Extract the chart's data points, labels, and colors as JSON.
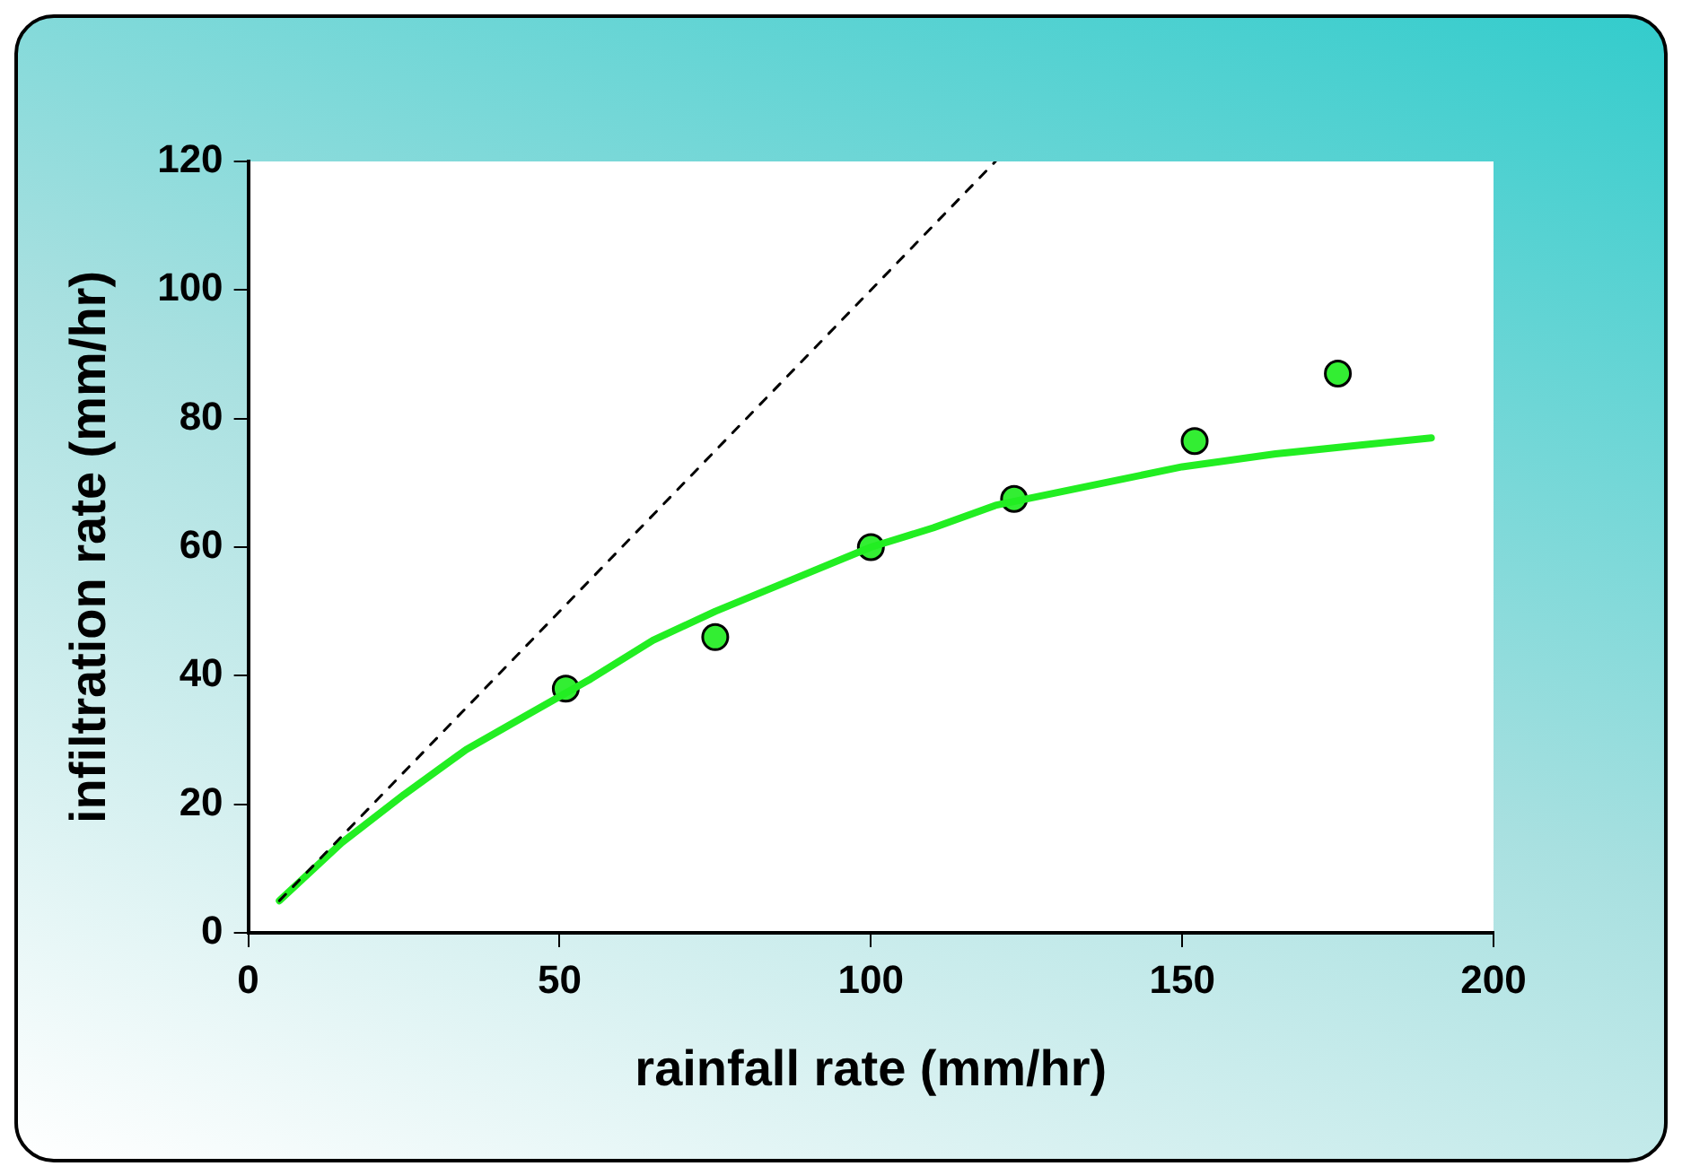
{
  "chart_data": {
    "type": "line",
    "xlabel": "rainfall rate (mm/hr)",
    "ylabel": "infiltration rate (mm/hr)",
    "xlim": [
      0,
      200
    ],
    "xticks": [
      0,
      50,
      100,
      150,
      200
    ],
    "ylim": [
      0,
      120
    ],
    "yticks": [
      0,
      20,
      40,
      60,
      80,
      100,
      120
    ],
    "series": [
      {
        "color": "#000000",
        "line_style": "dashed",
        "marker": "none",
        "x": [
          5,
          120
        ],
        "values": [
          5,
          120
        ]
      },
      {
        "color": "#22ee22",
        "line_style": "solid",
        "marker": "none",
        "x": [
          5,
          15,
          25,
          35,
          45,
          55,
          65,
          75,
          90,
          100,
          110,
          120,
          135,
          150,
          165,
          180,
          190
        ],
        "values": [
          5,
          14,
          21.5,
          28.5,
          34,
          39.5,
          45.5,
          50,
          56,
          60,
          63,
          66.5,
          69.5,
          72.5,
          74.5,
          76,
          77
        ]
      },
      {
        "type": "scatter",
        "color": "#33ee33",
        "marker": "circle",
        "x": [
          51,
          75,
          100,
          123,
          152,
          175
        ],
        "values": [
          38,
          46,
          60,
          67.5,
          76.5,
          87
        ]
      }
    ]
  }
}
